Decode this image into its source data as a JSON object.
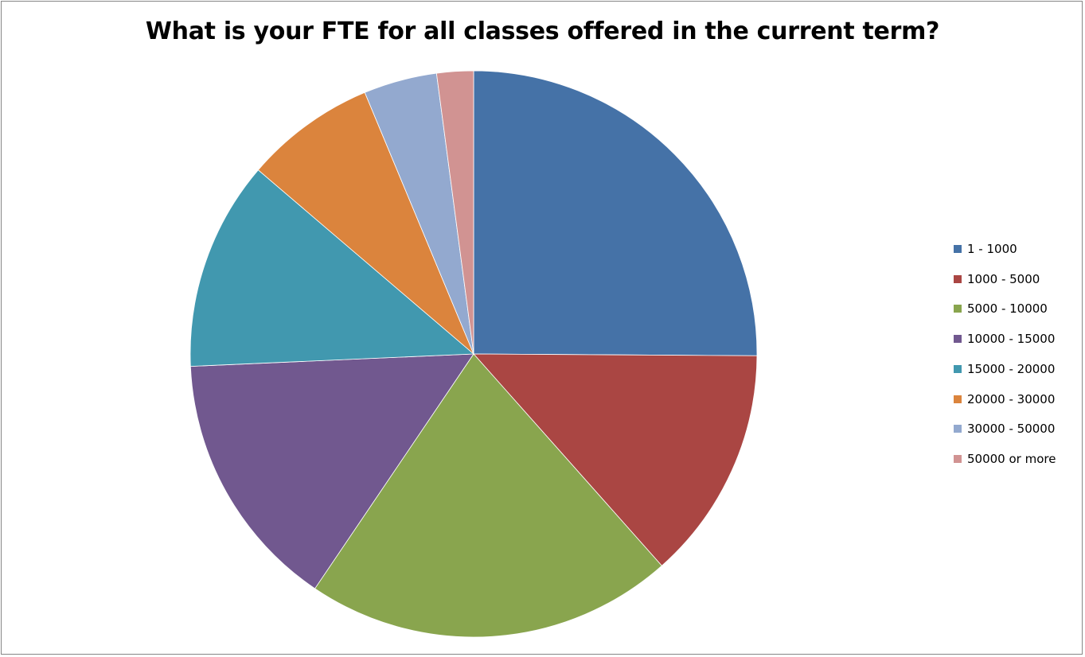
{
  "chart_data": {
    "type": "pie",
    "title": "What is your FTE for all classes offered in the current term?",
    "categories": [
      "1 - 1000",
      "1000 - 5000",
      "5000 - 10000",
      "10000 - 15000",
      "15000 - 20000",
      "20000 - 30000",
      "30000 - 50000",
      "50000 or more"
    ],
    "values": [
      25.2,
      13.4,
      21.1,
      14.9,
      12.0,
      7.5,
      4.2,
      2.1
    ],
    "colors": [
      "#4572A7",
      "#AA4643",
      "#89A54E",
      "#71588F",
      "#4198AF",
      "#DB843D",
      "#93A9CF",
      "#D19392"
    ],
    "legend_position": "right",
    "start_angle": "12 o'clock, clockwise"
  }
}
